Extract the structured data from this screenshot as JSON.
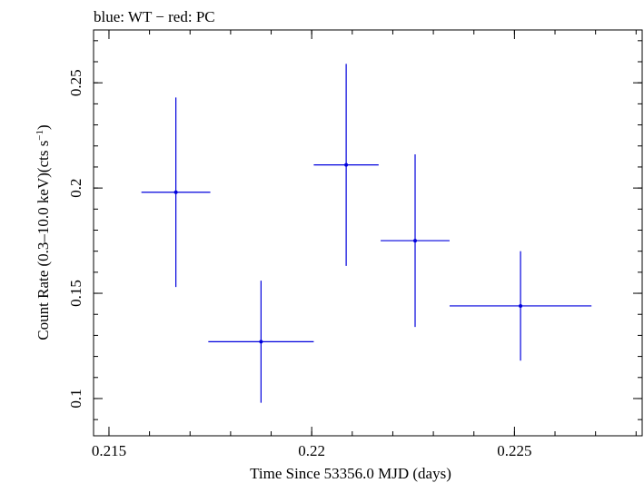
{
  "chart_data": {
    "type": "scatter",
    "title": "blue: WT − red: PC",
    "xlabel": "Time Since 53356.0 MJD (days)",
    "ylabel_main": "Count Rate (0.3–10.0 keV)(cts s",
    "ylabel_sup": "−1",
    "ylabel_end": ")",
    "xlim": [
      0.21462,
      0.22815
    ],
    "ylim": [
      0.0823,
      0.2751
    ],
    "xticks": [
      0.215,
      0.22,
      0.225
    ],
    "xtick_labels": [
      "0.215",
      "0.22",
      "0.225"
    ],
    "yticks": [
      0.1,
      0.15,
      0.2,
      0.25
    ],
    "ytick_labels": [
      "0.1",
      "0.15",
      "0.2",
      "0.25"
    ],
    "x_minor_step": 0.001,
    "y_minor_step": 0.01,
    "grid": false,
    "series": [
      {
        "color": "#0000dd",
        "points": [
          {
            "x": 0.21665,
            "xerr_low": 0.00085,
            "xerr_high": 0.00085,
            "y": 0.198,
            "yerr_low": 0.045,
            "yerr_high": 0.045
          },
          {
            "x": 0.21875,
            "xerr_low": 0.0013,
            "xerr_high": 0.0013,
            "y": 0.127,
            "yerr_low": 0.029,
            "yerr_high": 0.029
          },
          {
            "x": 0.22085,
            "xerr_low": 0.0008,
            "xerr_high": 0.0008,
            "y": 0.211,
            "yerr_low": 0.048,
            "yerr_high": 0.048
          },
          {
            "x": 0.22255,
            "xerr_low": 0.00085,
            "xerr_high": 0.00085,
            "y": 0.175,
            "yerr_low": 0.041,
            "yerr_high": 0.041
          },
          {
            "x": 0.22515,
            "xerr_low": 0.00175,
            "xerr_high": 0.00175,
            "y": 0.144,
            "yerr_low": 0.026,
            "yerr_high": 0.026
          }
        ]
      }
    ]
  }
}
